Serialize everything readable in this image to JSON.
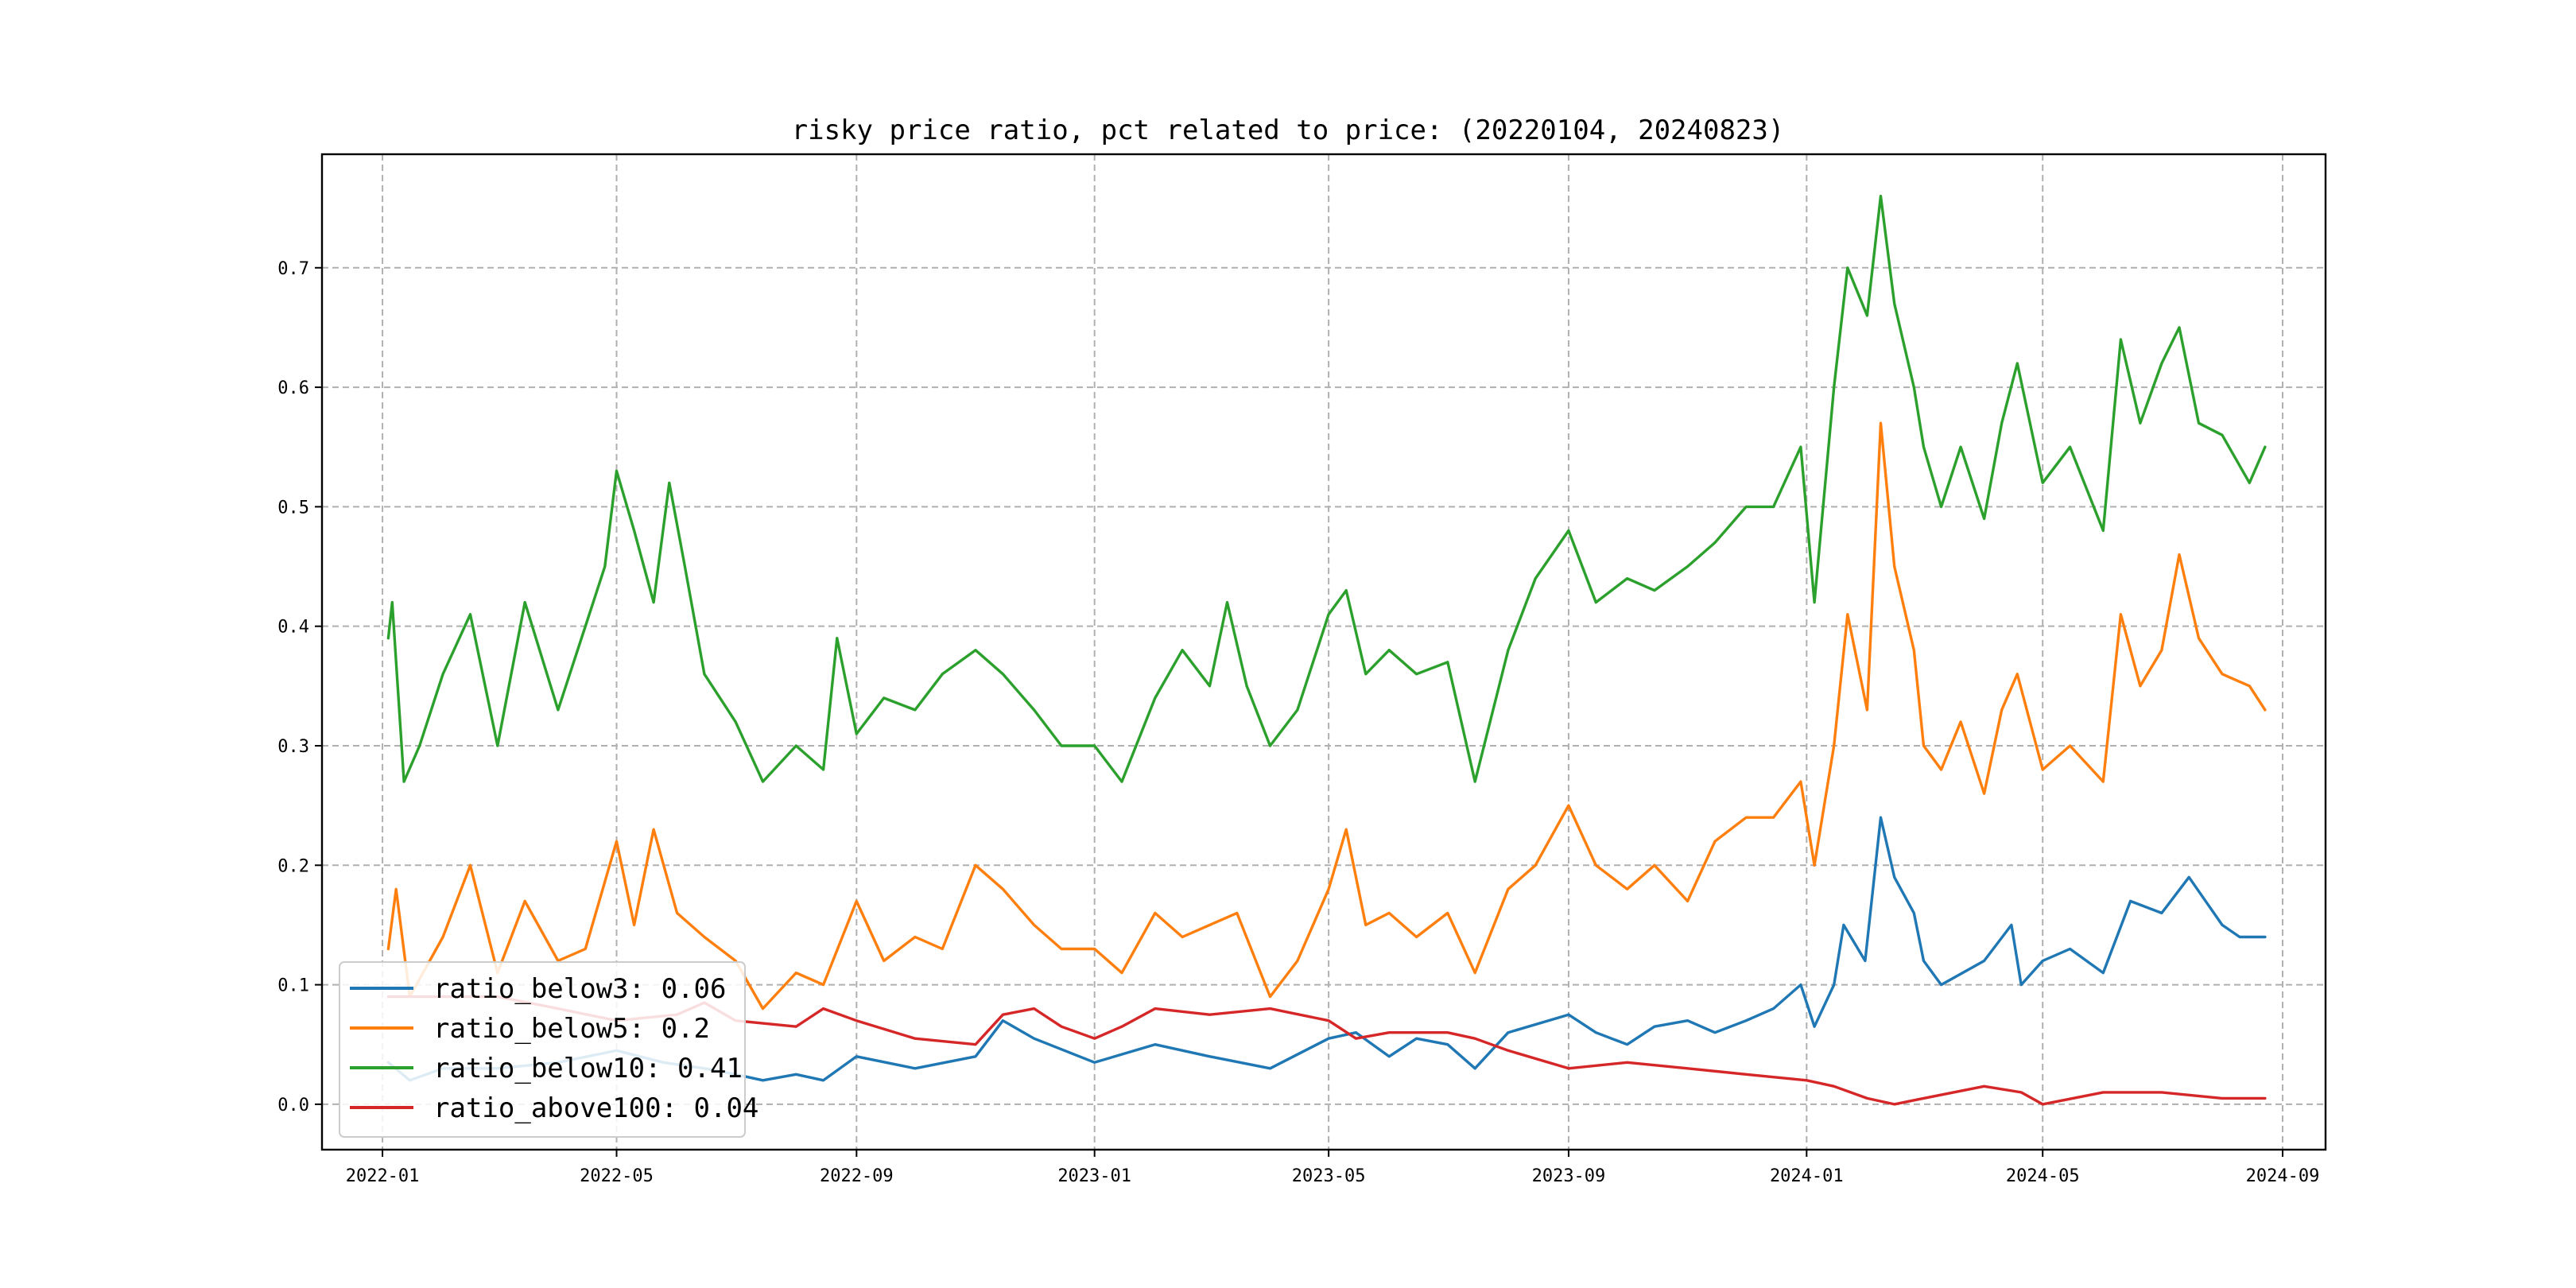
{
  "chart_data": {
    "type": "line",
    "title": "risky price ratio, pct related to price: (20220104, 20240823)",
    "xlabel": "",
    "ylabel": "",
    "x_range": [
      "2021-12-01",
      "2024-09-23"
    ],
    "ylim": [
      -0.038,
      0.795
    ],
    "grid": true,
    "legend_position": "lower-left",
    "x_ticks": [
      "2022-01",
      "2022-05",
      "2022-09",
      "2023-01",
      "2023-05",
      "2023-09",
      "2024-01",
      "2024-05",
      "2024-09"
    ],
    "y_ticks": [
      "0.0",
      "0.1",
      "0.2",
      "0.3",
      "0.4",
      "0.5",
      "0.6",
      "0.7"
    ],
    "series": [
      {
        "name": "ratio_below3",
        "legend": "ratio_below3: 0.06",
        "color": "#1f77b4",
        "points": [
          [
            "2022-01-04",
            0.035
          ],
          [
            "2022-01-15",
            0.02
          ],
          [
            "2022-02-01",
            0.03
          ],
          [
            "2022-03-01",
            0.03
          ],
          [
            "2022-04-01",
            0.035
          ],
          [
            "2022-05-01",
            0.045
          ],
          [
            "2022-05-25",
            0.035
          ],
          [
            "2022-06-15",
            0.03
          ],
          [
            "2022-07-01",
            0.025
          ],
          [
            "2022-07-15",
            0.02
          ],
          [
            "2022-08-01",
            0.025
          ],
          [
            "2022-08-15",
            0.02
          ],
          [
            "2022-09-01",
            0.04
          ],
          [
            "2022-10-01",
            0.03
          ],
          [
            "2022-11-01",
            0.04
          ],
          [
            "2022-11-15",
            0.07
          ],
          [
            "2022-12-01",
            0.055
          ],
          [
            "2023-01-01",
            0.035
          ],
          [
            "2023-02-01",
            0.05
          ],
          [
            "2023-03-01",
            0.04
          ],
          [
            "2023-04-01",
            0.03
          ],
          [
            "2023-05-01",
            0.055
          ],
          [
            "2023-05-15",
            0.06
          ],
          [
            "2023-06-01",
            0.04
          ],
          [
            "2023-06-15",
            0.055
          ],
          [
            "2023-07-01",
            0.05
          ],
          [
            "2023-07-15",
            0.03
          ],
          [
            "2023-08-01",
            0.06
          ],
          [
            "2023-09-01",
            0.075
          ],
          [
            "2023-09-15",
            0.06
          ],
          [
            "2023-10-01",
            0.05
          ],
          [
            "2023-10-15",
            0.065
          ],
          [
            "2023-11-01",
            0.07
          ],
          [
            "2023-11-15",
            0.06
          ],
          [
            "2023-12-01",
            0.07
          ],
          [
            "2023-12-15",
            0.08
          ],
          [
            "2023-12-29",
            0.1
          ],
          [
            "2024-01-05",
            0.065
          ],
          [
            "2024-01-15",
            0.1
          ],
          [
            "2024-01-20",
            0.15
          ],
          [
            "2024-01-31",
            0.12
          ],
          [
            "2024-02-08",
            0.24
          ],
          [
            "2024-02-15",
            0.19
          ],
          [
            "2024-02-25",
            0.16
          ],
          [
            "2024-03-01",
            0.12
          ],
          [
            "2024-03-10",
            0.1
          ],
          [
            "2024-04-01",
            0.12
          ],
          [
            "2024-04-15",
            0.15
          ],
          [
            "2024-04-20",
            0.1
          ],
          [
            "2024-05-01",
            0.12
          ],
          [
            "2024-05-15",
            0.13
          ],
          [
            "2024-06-01",
            0.11
          ],
          [
            "2024-06-15",
            0.17
          ],
          [
            "2024-07-01",
            0.16
          ],
          [
            "2024-07-15",
            0.19
          ],
          [
            "2024-08-01",
            0.15
          ],
          [
            "2024-08-10",
            0.14
          ],
          [
            "2024-08-23",
            0.14
          ]
        ]
      },
      {
        "name": "ratio_below5",
        "legend": "ratio_below5: 0.2",
        "color": "#ff7f0e",
        "points": [
          [
            "2022-01-04",
            0.13
          ],
          [
            "2022-01-08",
            0.18
          ],
          [
            "2022-01-15",
            0.09
          ],
          [
            "2022-02-01",
            0.14
          ],
          [
            "2022-02-15",
            0.2
          ],
          [
            "2022-03-01",
            0.11
          ],
          [
            "2022-03-15",
            0.17
          ],
          [
            "2022-04-01",
            0.12
          ],
          [
            "2022-04-15",
            0.13
          ],
          [
            "2022-05-01",
            0.22
          ],
          [
            "2022-05-10",
            0.15
          ],
          [
            "2022-05-20",
            0.23
          ],
          [
            "2022-06-01",
            0.16
          ],
          [
            "2022-06-15",
            0.14
          ],
          [
            "2022-07-01",
            0.12
          ],
          [
            "2022-07-15",
            0.08
          ],
          [
            "2022-08-01",
            0.11
          ],
          [
            "2022-08-15",
            0.1
          ],
          [
            "2022-09-01",
            0.17
          ],
          [
            "2022-09-15",
            0.12
          ],
          [
            "2022-10-01",
            0.14
          ],
          [
            "2022-10-15",
            0.13
          ],
          [
            "2022-11-01",
            0.2
          ],
          [
            "2022-11-15",
            0.18
          ],
          [
            "2022-12-01",
            0.15
          ],
          [
            "2022-12-15",
            0.13
          ],
          [
            "2023-01-01",
            0.13
          ],
          [
            "2023-01-15",
            0.11
          ],
          [
            "2023-02-01",
            0.16
          ],
          [
            "2023-02-15",
            0.14
          ],
          [
            "2023-03-01",
            0.15
          ],
          [
            "2023-03-15",
            0.16
          ],
          [
            "2023-04-01",
            0.09
          ],
          [
            "2023-04-15",
            0.12
          ],
          [
            "2023-05-01",
            0.18
          ],
          [
            "2023-05-10",
            0.23
          ],
          [
            "2023-05-20",
            0.15
          ],
          [
            "2023-06-01",
            0.16
          ],
          [
            "2023-06-15",
            0.14
          ],
          [
            "2023-07-01",
            0.16
          ],
          [
            "2023-07-15",
            0.11
          ],
          [
            "2023-08-01",
            0.18
          ],
          [
            "2023-08-15",
            0.2
          ],
          [
            "2023-09-01",
            0.25
          ],
          [
            "2023-09-15",
            0.2
          ],
          [
            "2023-10-01",
            0.18
          ],
          [
            "2023-10-15",
            0.2
          ],
          [
            "2023-11-01",
            0.17
          ],
          [
            "2023-11-15",
            0.22
          ],
          [
            "2023-12-01",
            0.24
          ],
          [
            "2023-12-15",
            0.24
          ],
          [
            "2023-12-29",
            0.27
          ],
          [
            "2024-01-05",
            0.2
          ],
          [
            "2024-01-15",
            0.3
          ],
          [
            "2024-01-22",
            0.41
          ],
          [
            "2024-02-01",
            0.33
          ],
          [
            "2024-02-08",
            0.57
          ],
          [
            "2024-02-15",
            0.45
          ],
          [
            "2024-02-25",
            0.38
          ],
          [
            "2024-03-01",
            0.3
          ],
          [
            "2024-03-10",
            0.28
          ],
          [
            "2024-03-20",
            0.32
          ],
          [
            "2024-04-01",
            0.26
          ],
          [
            "2024-04-10",
            0.33
          ],
          [
            "2024-04-18",
            0.36
          ],
          [
            "2024-05-01",
            0.28
          ],
          [
            "2024-05-15",
            0.3
          ],
          [
            "2024-06-01",
            0.27
          ],
          [
            "2024-06-10",
            0.41
          ],
          [
            "2024-06-20",
            0.35
          ],
          [
            "2024-07-01",
            0.38
          ],
          [
            "2024-07-10",
            0.46
          ],
          [
            "2024-07-20",
            0.39
          ],
          [
            "2024-08-01",
            0.36
          ],
          [
            "2024-08-15",
            0.35
          ],
          [
            "2024-08-23",
            0.33
          ]
        ]
      },
      {
        "name": "ratio_below10",
        "legend": "ratio_below10: 0.41",
        "color": "#2ca02c",
        "points": [
          [
            "2022-01-04",
            0.39
          ],
          [
            "2022-01-06",
            0.42
          ],
          [
            "2022-01-12",
            0.27
          ],
          [
            "2022-01-20",
            0.3
          ],
          [
            "2022-02-01",
            0.36
          ],
          [
            "2022-02-15",
            0.41
          ],
          [
            "2022-03-01",
            0.3
          ],
          [
            "2022-03-15",
            0.42
          ],
          [
            "2022-04-01",
            0.33
          ],
          [
            "2022-04-15",
            0.4
          ],
          [
            "2022-04-25",
            0.45
          ],
          [
            "2022-05-01",
            0.53
          ],
          [
            "2022-05-10",
            0.48
          ],
          [
            "2022-05-20",
            0.42
          ],
          [
            "2022-05-28",
            0.52
          ],
          [
            "2022-06-05",
            0.45
          ],
          [
            "2022-06-15",
            0.36
          ],
          [
            "2022-07-01",
            0.32
          ],
          [
            "2022-07-15",
            0.27
          ],
          [
            "2022-08-01",
            0.3
          ],
          [
            "2022-08-15",
            0.28
          ],
          [
            "2022-08-22",
            0.39
          ],
          [
            "2022-09-01",
            0.31
          ],
          [
            "2022-09-15",
            0.34
          ],
          [
            "2022-10-01",
            0.33
          ],
          [
            "2022-10-15",
            0.36
          ],
          [
            "2022-11-01",
            0.38
          ],
          [
            "2022-11-15",
            0.36
          ],
          [
            "2022-12-01",
            0.33
          ],
          [
            "2022-12-15",
            0.3
          ],
          [
            "2023-01-01",
            0.3
          ],
          [
            "2023-01-15",
            0.27
          ],
          [
            "2023-02-01",
            0.34
          ],
          [
            "2023-02-15",
            0.38
          ],
          [
            "2023-03-01",
            0.35
          ],
          [
            "2023-03-10",
            0.42
          ],
          [
            "2023-03-20",
            0.35
          ],
          [
            "2023-04-01",
            0.3
          ],
          [
            "2023-04-15",
            0.33
          ],
          [
            "2023-05-01",
            0.41
          ],
          [
            "2023-05-10",
            0.43
          ],
          [
            "2023-05-20",
            0.36
          ],
          [
            "2023-06-01",
            0.38
          ],
          [
            "2023-06-15",
            0.36
          ],
          [
            "2023-07-01",
            0.37
          ],
          [
            "2023-07-15",
            0.27
          ],
          [
            "2023-08-01",
            0.38
          ],
          [
            "2023-08-15",
            0.44
          ],
          [
            "2023-09-01",
            0.48
          ],
          [
            "2023-09-15",
            0.42
          ],
          [
            "2023-10-01",
            0.44
          ],
          [
            "2023-10-15",
            0.43
          ],
          [
            "2023-11-01",
            0.45
          ],
          [
            "2023-11-15",
            0.47
          ],
          [
            "2023-12-01",
            0.5
          ],
          [
            "2023-12-15",
            0.5
          ],
          [
            "2023-12-29",
            0.55
          ],
          [
            "2024-01-05",
            0.42
          ],
          [
            "2024-01-15",
            0.6
          ],
          [
            "2024-01-22",
            0.7
          ],
          [
            "2024-02-01",
            0.66
          ],
          [
            "2024-02-08",
            0.76
          ],
          [
            "2024-02-15",
            0.67
          ],
          [
            "2024-02-25",
            0.6
          ],
          [
            "2024-03-01",
            0.55
          ],
          [
            "2024-03-10",
            0.5
          ],
          [
            "2024-03-20",
            0.55
          ],
          [
            "2024-04-01",
            0.49
          ],
          [
            "2024-04-10",
            0.57
          ],
          [
            "2024-04-18",
            0.62
          ],
          [
            "2024-05-01",
            0.52
          ],
          [
            "2024-05-15",
            0.55
          ],
          [
            "2024-06-01",
            0.48
          ],
          [
            "2024-06-10",
            0.64
          ],
          [
            "2024-06-20",
            0.57
          ],
          [
            "2024-07-01",
            0.62
          ],
          [
            "2024-07-10",
            0.65
          ],
          [
            "2024-07-20",
            0.57
          ],
          [
            "2024-08-01",
            0.56
          ],
          [
            "2024-08-15",
            0.52
          ],
          [
            "2024-08-23",
            0.55
          ]
        ]
      },
      {
        "name": "ratio_above100",
        "legend": "ratio_above100: 0.04",
        "color": "#d62728",
        "points": [
          [
            "2022-01-04",
            0.09
          ],
          [
            "2022-02-01",
            0.09
          ],
          [
            "2022-03-01",
            0.09
          ],
          [
            "2022-04-01",
            0.08
          ],
          [
            "2022-05-01",
            0.07
          ],
          [
            "2022-06-01",
            0.075
          ],
          [
            "2022-06-15",
            0.085
          ],
          [
            "2022-07-01",
            0.07
          ],
          [
            "2022-08-01",
            0.065
          ],
          [
            "2022-08-15",
            0.08
          ],
          [
            "2022-09-01",
            0.07
          ],
          [
            "2022-10-01",
            0.055
          ],
          [
            "2022-11-01",
            0.05
          ],
          [
            "2022-11-15",
            0.075
          ],
          [
            "2022-12-01",
            0.08
          ],
          [
            "2022-12-15",
            0.065
          ],
          [
            "2023-01-01",
            0.055
          ],
          [
            "2023-01-15",
            0.065
          ],
          [
            "2023-02-01",
            0.08
          ],
          [
            "2023-03-01",
            0.075
          ],
          [
            "2023-04-01",
            0.08
          ],
          [
            "2023-05-01",
            0.07
          ],
          [
            "2023-05-15",
            0.055
          ],
          [
            "2023-06-01",
            0.06
          ],
          [
            "2023-07-01",
            0.06
          ],
          [
            "2023-07-15",
            0.055
          ],
          [
            "2023-08-01",
            0.045
          ],
          [
            "2023-09-01",
            0.03
          ],
          [
            "2023-10-01",
            0.035
          ],
          [
            "2023-11-01",
            0.03
          ],
          [
            "2023-12-01",
            0.025
          ],
          [
            "2024-01-01",
            0.02
          ],
          [
            "2024-01-15",
            0.015
          ],
          [
            "2024-02-01",
            0.005
          ],
          [
            "2024-02-15",
            0.0
          ],
          [
            "2024-03-01",
            0.005
          ],
          [
            "2024-04-01",
            0.015
          ],
          [
            "2024-04-20",
            0.01
          ],
          [
            "2024-05-01",
            0.0
          ],
          [
            "2024-06-01",
            0.01
          ],
          [
            "2024-07-01",
            0.01
          ],
          [
            "2024-08-01",
            0.005
          ],
          [
            "2024-08-23",
            0.005
          ]
        ]
      }
    ]
  }
}
